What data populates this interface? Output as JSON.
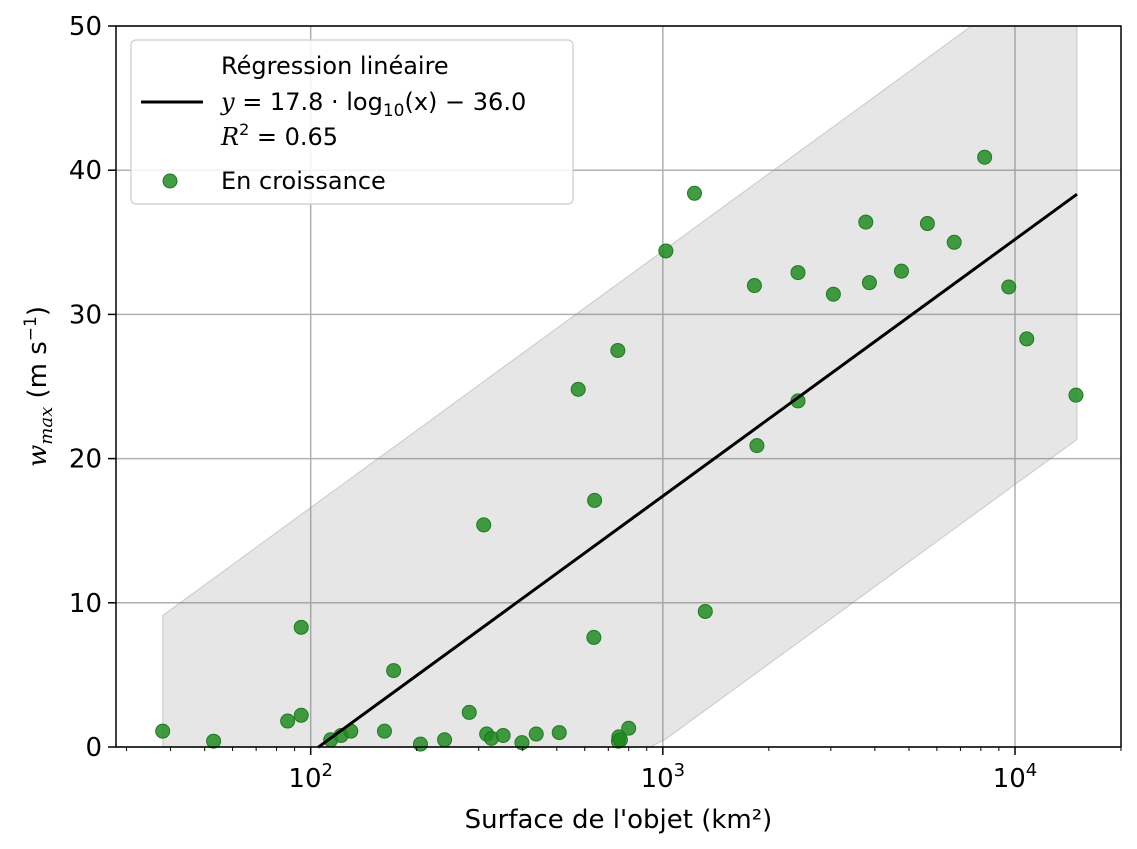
{
  "chart_data": {
    "type": "scatter",
    "xscale": "log",
    "xlim": [
      28,
      20000
    ],
    "ylim": [
      0,
      50
    ],
    "xlabel": "Surface de l'objet (km²)",
    "ylabel_main": "w",
    "ylabel_sub": "max",
    "ylabel_unit_pre": " (m s",
    "ylabel_unit_sup": "−1",
    "ylabel_unit_post": ")",
    "grid": true,
    "x_ticks": [
      {
        "value": 100,
        "base": "10",
        "exp": "2"
      },
      {
        "value": 1000,
        "base": "10",
        "exp": "3"
      },
      {
        "value": 10000,
        "base": "10",
        "exp": "4"
      }
    ],
    "y_ticks": [
      0,
      10,
      20,
      30,
      40,
      50
    ],
    "legend_position": "top-left",
    "regression": {
      "name_line1": "Régression linéaire",
      "eq_y": "y",
      "eq_mid": " = 17.8 · log",
      "eq_sub": "10",
      "eq_post": "(x) − 36.0",
      "r2_r": "R",
      "r2_sup": "2",
      "r2_post": " = 0.65",
      "slope": 17.8,
      "intercept": -36.0,
      "x_range": [
        105,
        15000
      ],
      "color": "#000000"
    },
    "band": {
      "offset": 17,
      "x_range": [
        38,
        15000
      ],
      "color": "#808080"
    },
    "series": [
      {
        "name": "En croissance",
        "color": "#228b22",
        "points": [
          [
            38,
            1.1
          ],
          [
            53,
            0.4
          ],
          [
            86,
            1.8
          ],
          [
            94,
            2.2
          ],
          [
            94,
            8.3
          ],
          [
            114,
            0.5
          ],
          [
            122,
            0.8
          ],
          [
            130,
            1.1
          ],
          [
            162,
            1.1
          ],
          [
            172,
            5.3
          ],
          [
            205,
            0.2
          ],
          [
            240,
            0.5
          ],
          [
            282,
            2.4
          ],
          [
            310,
            15.4
          ],
          [
            316,
            0.9
          ],
          [
            326,
            0.6
          ],
          [
            352,
            0.8
          ],
          [
            398,
            0.3
          ],
          [
            437,
            0.9
          ],
          [
            508,
            1.0
          ],
          [
            575,
            24.8
          ],
          [
            637,
            7.6
          ],
          [
            640,
            17.1
          ],
          [
            745,
            27.5
          ],
          [
            748,
            0.4
          ],
          [
            750,
            0.7
          ],
          [
            758,
            0.5
          ],
          [
            800,
            1.3
          ],
          [
            1020,
            34.4
          ],
          [
            1230,
            38.4
          ],
          [
            1320,
            9.4
          ],
          [
            1820,
            32.0
          ],
          [
            1850,
            20.9
          ],
          [
            2420,
            32.9
          ],
          [
            2420,
            24.0
          ],
          [
            3050,
            31.4
          ],
          [
            3770,
            36.4
          ],
          [
            3860,
            32.2
          ],
          [
            4760,
            33.0
          ],
          [
            5640,
            36.3
          ],
          [
            6720,
            35.0
          ],
          [
            8200,
            40.9
          ],
          [
            9600,
            31.9
          ],
          [
            10800,
            28.3
          ],
          [
            14900,
            24.4
          ]
        ]
      }
    ]
  }
}
